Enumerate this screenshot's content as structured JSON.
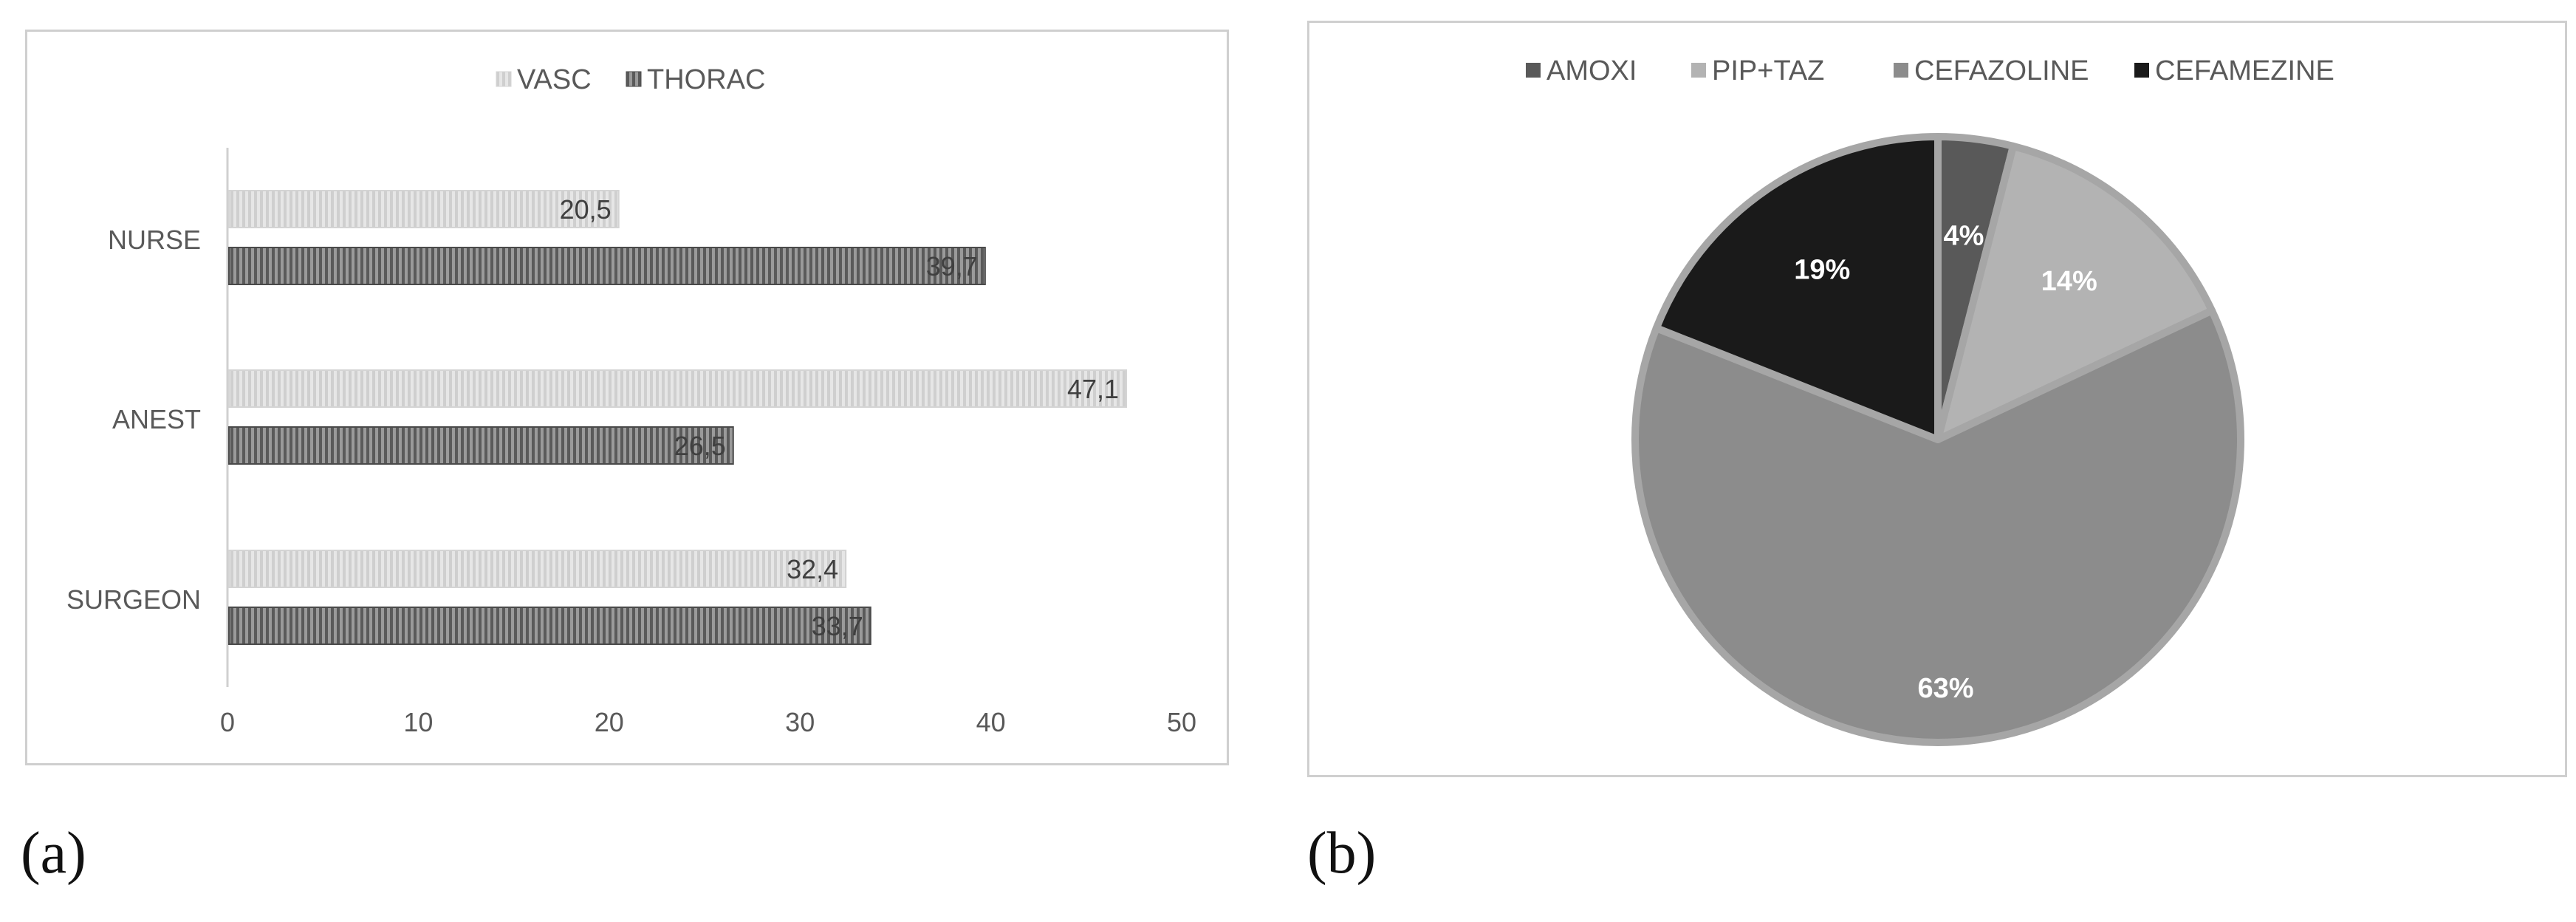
{
  "panel_labels": {
    "a": "(a)",
    "b": "(b)"
  },
  "chart_data": [
    {
      "type": "bar",
      "orientation": "horizontal",
      "title": "",
      "xlabel": "",
      "ylabel": "",
      "categories": [
        "NURSE",
        "ANEST",
        "SURGEON"
      ],
      "series": [
        {
          "name": "VASC",
          "values": [
            20.5,
            47.1,
            32.4
          ],
          "labels": [
            "20,5",
            "47,1",
            "32,4"
          ],
          "color": "#d9d9d9"
        },
        {
          "name": "THORAC",
          "values": [
            39.7,
            26.5,
            33.7
          ],
          "labels": [
            "39,7",
            "26,5",
            "33,7"
          ],
          "color": "#7f7f7f"
        }
      ],
      "xlim": [
        0,
        50
      ],
      "xticks": [
        "0",
        "10",
        "20",
        "30",
        "40",
        "50"
      ],
      "grid": false,
      "legend": "top"
    },
    {
      "type": "pie",
      "title": "",
      "slices": [
        {
          "name": "AMOXI",
          "value": 4,
          "label": "4%",
          "color": "#595959"
        },
        {
          "name": "PIP+TAZ",
          "value": 14,
          "label": "14%",
          "color": "#b3b3b3"
        },
        {
          "name": "CEFAZOLINE",
          "value": 63,
          "label": "63%",
          "color": "#8c8c8c"
        },
        {
          "name": "CEFAMEZINE",
          "value": 19,
          "label": "19%",
          "color": "#1a1a1a"
        }
      ],
      "legend": "top"
    }
  ]
}
